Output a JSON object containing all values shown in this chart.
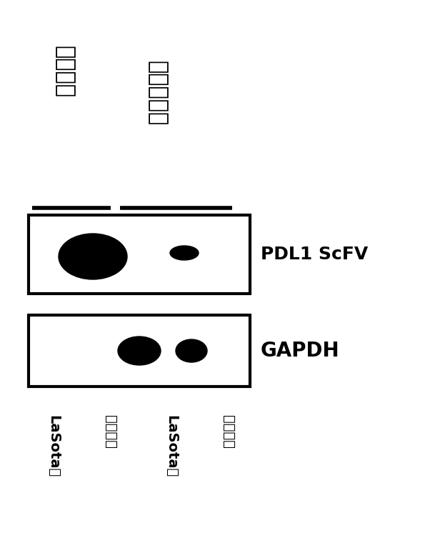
{
  "bg_color": "#ffffff",
  "label_top_left": "细胞上清",
  "label_top_right": "细胞裂解液",
  "label_pdl1": "PDL1 ScFV",
  "label_gapdh": "GAPDH",
  "bottom_labels": [
    "LaSota株",
    "本发明株",
    "LaSota株",
    "本发明株"
  ],
  "fig_width": 5.95,
  "fig_height": 7.81,
  "dpi": 100
}
